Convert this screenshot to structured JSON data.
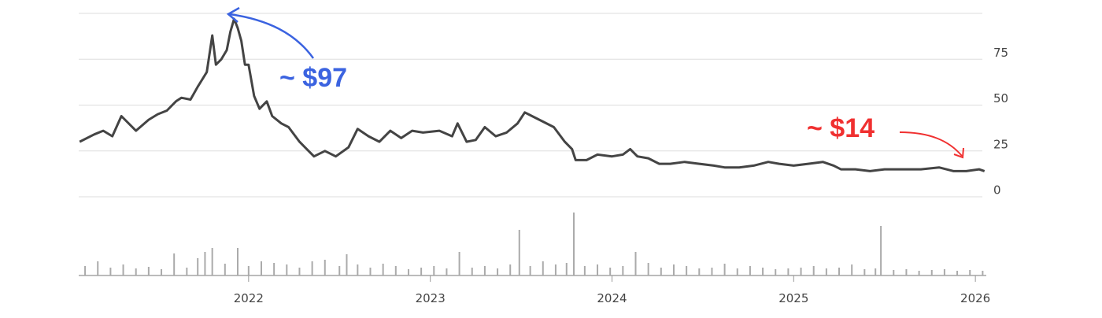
{
  "chart_data": [
    {
      "type": "line",
      "x": [
        2021.07,
        2021.15,
        2021.2,
        2021.25,
        2021.3,
        2021.38,
        2021.45,
        2021.5,
        2021.55,
        2021.6,
        2021.63,
        2021.68,
        2021.72,
        2021.77,
        2021.8,
        2021.82,
        2021.85,
        2021.88,
        2021.9,
        2021.92,
        2021.94,
        2021.96,
        2021.98,
        2022.0,
        2022.03,
        2022.06,
        2022.1,
        2022.13,
        2022.18,
        2022.22,
        2022.28,
        2022.32,
        2022.36,
        2022.42,
        2022.48,
        2022.55,
        2022.6,
        2022.66,
        2022.72,
        2022.78,
        2022.84,
        2022.9,
        2022.96,
        2023.05,
        2023.12,
        2023.15,
        2023.2,
        2023.25,
        2023.3,
        2023.36,
        2023.42,
        2023.48,
        2023.52,
        2023.56,
        2023.62,
        2023.68,
        2023.74,
        2023.78,
        2023.8,
        2023.86,
        2023.92,
        2024.0,
        2024.06,
        2024.1,
        2024.14,
        2024.2,
        2024.26,
        2024.32,
        2024.4,
        2024.48,
        2024.56,
        2024.62,
        2024.7,
        2024.78,
        2024.86,
        2024.92,
        2025.0,
        2025.08,
        2025.16,
        2025.22,
        2025.26,
        2025.34,
        2025.42,
        2025.5,
        2025.6,
        2025.7,
        2025.8,
        2025.88,
        2025.95,
        2026.02,
        2026.05
      ],
      "series": [
        {
          "color": "#444444",
          "values": [
            30,
            34,
            36,
            33,
            44,
            36,
            42,
            45,
            47,
            52,
            54,
            53,
            60,
            68,
            88,
            72,
            75,
            80,
            90,
            97,
            92,
            85,
            72,
            72,
            55,
            48,
            52,
            44,
            40,
            38,
            30,
            26,
            22,
            25,
            22,
            27,
            37,
            33,
            30,
            36,
            32,
            36,
            35,
            36,
            33,
            40,
            30,
            31,
            38,
            33,
            35,
            40,
            46,
            44,
            41,
            38,
            30,
            26,
            20,
            20,
            23,
            22,
            23,
            26,
            22,
            21,
            18,
            18,
            19,
            18,
            17,
            16,
            16,
            17,
            19,
            18,
            17,
            18,
            19,
            17,
            15,
            15,
            14,
            15,
            15,
            15,
            16,
            14,
            14,
            15,
            14
          ]
        }
      ],
      "xlim": [
        2021.065,
        2026.06
      ],
      "xticks": [
        2022,
        2023,
        2024,
        2025,
        2026
      ],
      "ylim": [
        0,
        100
      ],
      "yticks": [
        0,
        25,
        50,
        75
      ],
      "grid": true,
      "annotations": [
        {
          "text": "~ $97",
          "color": "#3b63e0"
        },
        {
          "text": "~ $14",
          "color": "#f03030"
        }
      ]
    },
    {
      "type": "bar",
      "x": [
        2021.1,
        2021.17,
        2021.24,
        2021.31,
        2021.38,
        2021.45,
        2021.52,
        2021.59,
        2021.66,
        2021.72,
        2021.76,
        2021.8,
        2021.87,
        2021.94,
        2022.0,
        2022.07,
        2022.14,
        2022.21,
        2022.28,
        2022.35,
        2022.42,
        2022.5,
        2022.54,
        2022.6,
        2022.67,
        2022.74,
        2022.81,
        2022.88,
        2022.95,
        2023.02,
        2023.09,
        2023.16,
        2023.23,
        2023.3,
        2023.37,
        2023.44,
        2023.49,
        2023.55,
        2023.62,
        2023.69,
        2023.75,
        2023.79,
        2023.85,
        2023.92,
        2023.99,
        2024.06,
        2024.13,
        2024.2,
        2024.27,
        2024.34,
        2024.41,
        2024.48,
        2024.55,
        2024.62,
        2024.69,
        2024.76,
        2024.83,
        2024.9,
        2024.97,
        2025.04,
        2025.11,
        2025.18,
        2025.25,
        2025.32,
        2025.39,
        2025.45,
        2025.48,
        2025.55,
        2025.62,
        2025.69,
        2025.76,
        2025.83,
        2025.9,
        2025.97,
        2026.04
      ],
      "series": [
        {
          "color": "#aaaaaa",
          "values": [
            12,
            18,
            10,
            14,
            9,
            11,
            8,
            28,
            10,
            22,
            30,
            35,
            15,
            35,
            12,
            18,
            16,
            14,
            10,
            18,
            20,
            12,
            27,
            14,
            10,
            15,
            12,
            8,
            10,
            12,
            9,
            30,
            10,
            12,
            9,
            14,
            58,
            12,
            18,
            14,
            16,
            80,
            12,
            14,
            10,
            12,
            30,
            16,
            10,
            14,
            12,
            9,
            10,
            15,
            9,
            12,
            10,
            8,
            9,
            10,
            12,
            9,
            10,
            14,
            8,
            9,
            63,
            7,
            8,
            6,
            7,
            8,
            6,
            7,
            6
          ]
        }
      ],
      "xlim": [
        2021.065,
        2026.06
      ],
      "ylim": [
        0,
        80
      ]
    }
  ]
}
